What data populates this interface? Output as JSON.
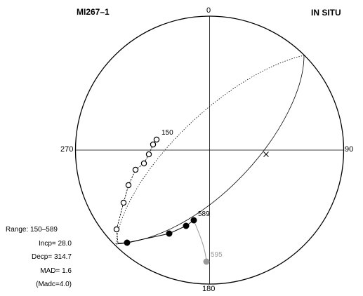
{
  "header": {
    "sample_id": "MI267–1",
    "coordinate_system": "IN SITU"
  },
  "compass": {
    "north": "0",
    "east": "90",
    "south": "180",
    "west": "270"
  },
  "step_labels": {
    "first": "150",
    "fit_end": "589",
    "last": "595"
  },
  "stats": {
    "range": "Range: 150–589",
    "incp": "Incp=  28.0",
    "decp": "Decp= 314.7",
    "mad": "MAD=   1.6",
    "madc": "(Madc=4.0)"
  },
  "colors": {
    "ink": "#000000",
    "excluded_step": "#999999"
  },
  "chart_data": {
    "type": "scatter",
    "projection": "equal-area stereonet",
    "open_symbols_meaning": "upper hemisphere",
    "filled_symbols_meaning": "lower hemisphere",
    "demag_steps": [
      {
        "label": "150",
        "hemisphere": "upper",
        "included": true
      },
      {
        "label": "",
        "hemisphere": "upper",
        "included": true
      },
      {
        "label": "",
        "hemisphere": "upper",
        "included": true
      },
      {
        "label": "",
        "hemisphere": "upper",
        "included": true
      },
      {
        "label": "",
        "hemisphere": "upper",
        "included": true
      },
      {
        "label": "",
        "hemisphere": "upper",
        "included": true
      },
      {
        "label": "",
        "hemisphere": "upper",
        "included": true
      },
      {
        "label": "",
        "hemisphere": "upper",
        "included": true
      },
      {
        "label": "",
        "hemisphere": "lower",
        "included": true
      },
      {
        "label": "",
        "hemisphere": "lower",
        "included": true
      },
      {
        "label": "",
        "hemisphere": "lower",
        "included": true
      },
      {
        "label": "589",
        "hemisphere": "lower",
        "included": true
      },
      {
        "label": "595",
        "hemisphere": "lower",
        "included": false
      }
    ],
    "fit": {
      "range": [
        150,
        589
      ],
      "incp": 28.0,
      "decp": 314.7,
      "mad": 1.6,
      "madc": 4.0
    }
  }
}
